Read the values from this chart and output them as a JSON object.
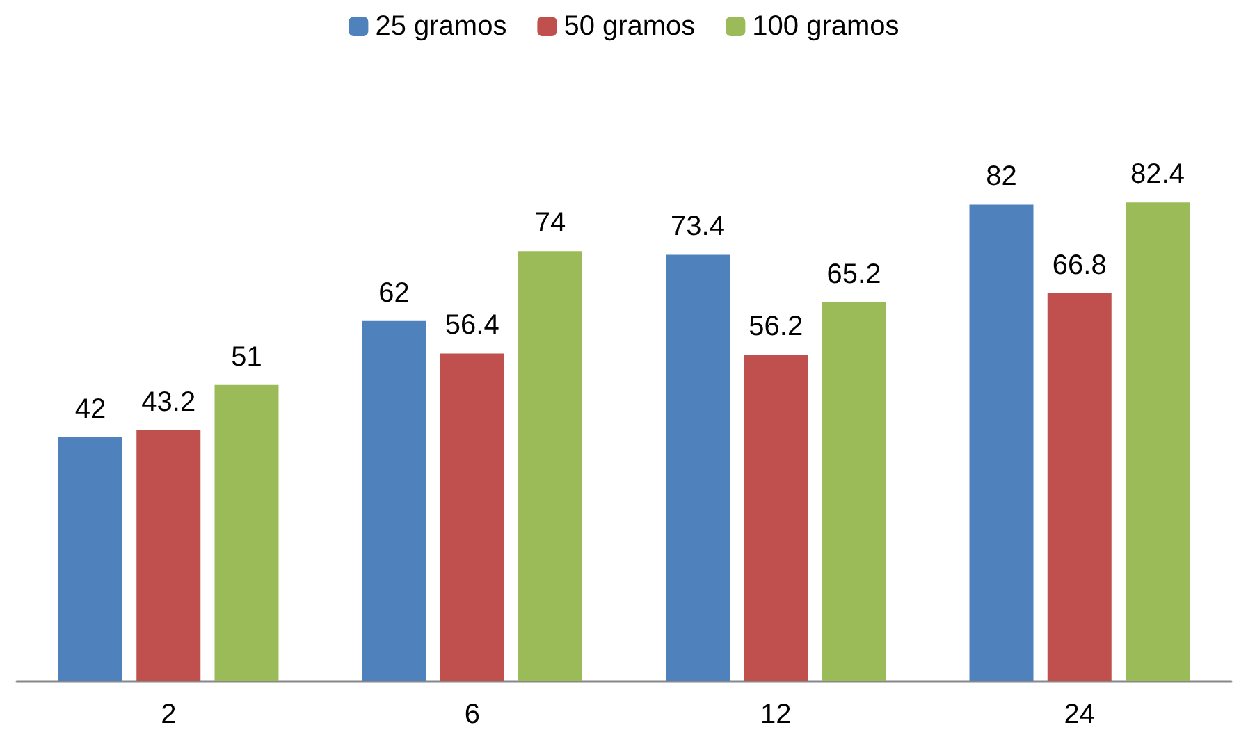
{
  "chart_data": {
    "type": "bar",
    "categories": [
      "2",
      "6",
      "12",
      "24"
    ],
    "series": [
      {
        "name": "25 gramos",
        "color": "#4f81bd",
        "values": [
          42,
          62,
          73.4,
          82
        ]
      },
      {
        "name": "50 gramos",
        "color": "#c0504d",
        "values": [
          43.2,
          56.4,
          56.2,
          66.8
        ]
      },
      {
        "name": "100 gramos",
        "color": "#9bbb59",
        "values": [
          51,
          74,
          65.2,
          82.4
        ]
      }
    ],
    "data_labels": true,
    "legend": "top"
  }
}
